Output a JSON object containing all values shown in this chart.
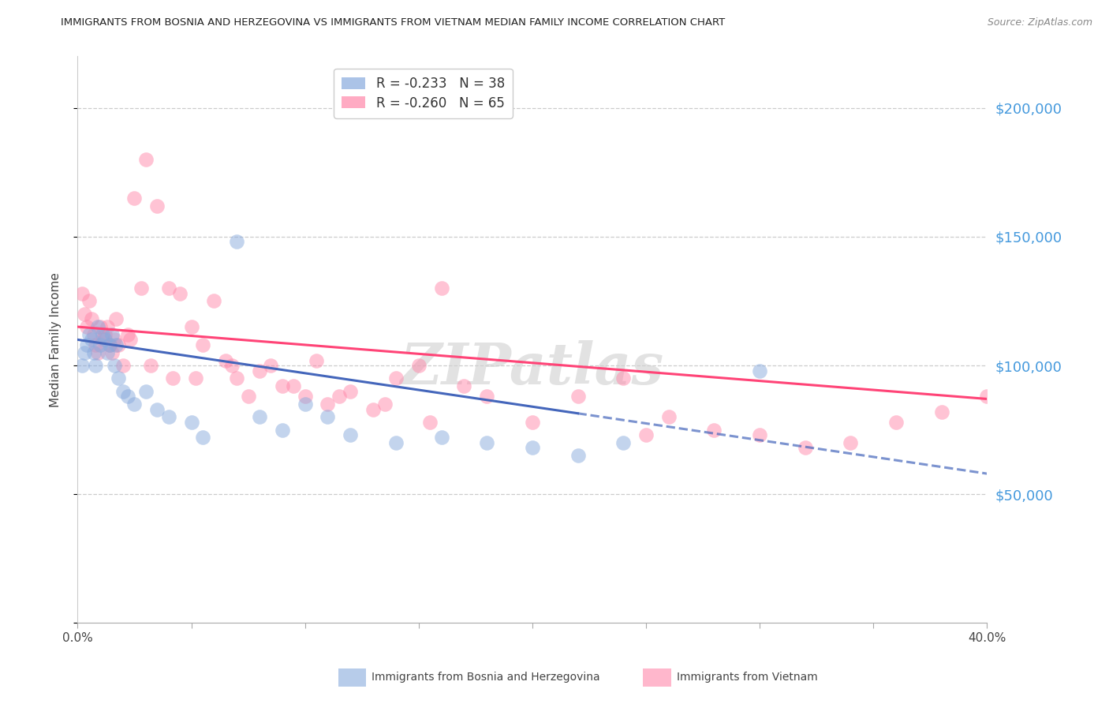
{
  "title": "IMMIGRANTS FROM BOSNIA AND HERZEGOVINA VS IMMIGRANTS FROM VIETNAM MEDIAN FAMILY INCOME CORRELATION CHART",
  "source": "Source: ZipAtlas.com",
  "ylabel": "Median Family Income",
  "bosnia_R": -0.233,
  "bosnia_N": 38,
  "vietnam_R": -0.26,
  "vietnam_N": 65,
  "bosnia_color": "#88AADD",
  "vietnam_color": "#FF88AA",
  "bosnia_line_color": "#4466BB",
  "vietnam_line_color": "#FF4477",
  "xlim": [
    0.0,
    40.0
  ],
  "ylim": [
    0,
    220000
  ],
  "y_tick_vals": [
    0,
    50000,
    100000,
    150000,
    200000
  ],
  "y_tick_labels": [
    "",
    "$50,000",
    "$100,000",
    "$150,000",
    "$200,000"
  ],
  "x_tick_vals": [
    0,
    5,
    10,
    15,
    20,
    25,
    30,
    35,
    40
  ],
  "watermark": "ZIPatlas",
  "legend_bosnia_label": "Immigrants from Bosnia and Herzegovina",
  "legend_vietnam_label": "Immigrants from Vietnam",
  "bosnia_intercept": 110000,
  "bosnia_slope": -1300,
  "vietnam_intercept": 115000,
  "vietnam_slope": -700,
  "bosnia_x": [
    0.2,
    0.3,
    0.4,
    0.5,
    0.6,
    0.7,
    0.8,
    0.9,
    1.0,
    1.1,
    1.2,
    1.3,
    1.4,
    1.5,
    1.6,
    1.7,
    1.8,
    2.0,
    2.2,
    2.5,
    3.0,
    3.5,
    4.0,
    5.0,
    5.5,
    7.0,
    8.0,
    9.0,
    10.0,
    11.0,
    12.0,
    14.0,
    16.0,
    18.0,
    20.0,
    22.0,
    24.0,
    30.0
  ],
  "bosnia_y": [
    100000,
    105000,
    108000,
    112000,
    110000,
    105000,
    100000,
    115000,
    108000,
    112000,
    110000,
    105000,
    108000,
    112000,
    100000,
    108000,
    95000,
    90000,
    88000,
    85000,
    90000,
    83000,
    80000,
    78000,
    72000,
    148000,
    80000,
    75000,
    85000,
    80000,
    73000,
    70000,
    72000,
    70000,
    68000,
    65000,
    70000,
    98000
  ],
  "vietnam_x": [
    0.2,
    0.3,
    0.4,
    0.5,
    0.6,
    0.7,
    0.8,
    0.9,
    1.0,
    1.1,
    1.2,
    1.3,
    1.4,
    1.5,
    1.6,
    1.7,
    1.8,
    2.0,
    2.2,
    2.5,
    2.8,
    3.0,
    3.5,
    4.0,
    4.5,
    5.0,
    5.5,
    6.0,
    6.5,
    7.0,
    8.0,
    9.0,
    10.0,
    11.0,
    12.0,
    13.0,
    14.0,
    15.0,
    16.0,
    17.0,
    18.0,
    20.0,
    22.0,
    24.0,
    25.0,
    26.0,
    28.0,
    30.0,
    32.0,
    34.0,
    36.0,
    38.0,
    40.0,
    3.2,
    5.2,
    7.5,
    9.5,
    10.5,
    2.3,
    4.2,
    6.8,
    8.5,
    11.5,
    13.5,
    15.5
  ],
  "vietnam_y": [
    128000,
    120000,
    115000,
    125000,
    118000,
    112000,
    108000,
    105000,
    115000,
    110000,
    112000,
    115000,
    108000,
    105000,
    110000,
    118000,
    108000,
    100000,
    112000,
    165000,
    130000,
    180000,
    162000,
    130000,
    128000,
    115000,
    108000,
    125000,
    102000,
    95000,
    98000,
    92000,
    88000,
    85000,
    90000,
    83000,
    95000,
    100000,
    130000,
    92000,
    88000,
    78000,
    88000,
    95000,
    73000,
    80000,
    75000,
    73000,
    68000,
    70000,
    78000,
    82000,
    88000,
    100000,
    95000,
    88000,
    92000,
    102000,
    110000,
    95000,
    100000,
    100000,
    88000,
    85000,
    78000
  ]
}
